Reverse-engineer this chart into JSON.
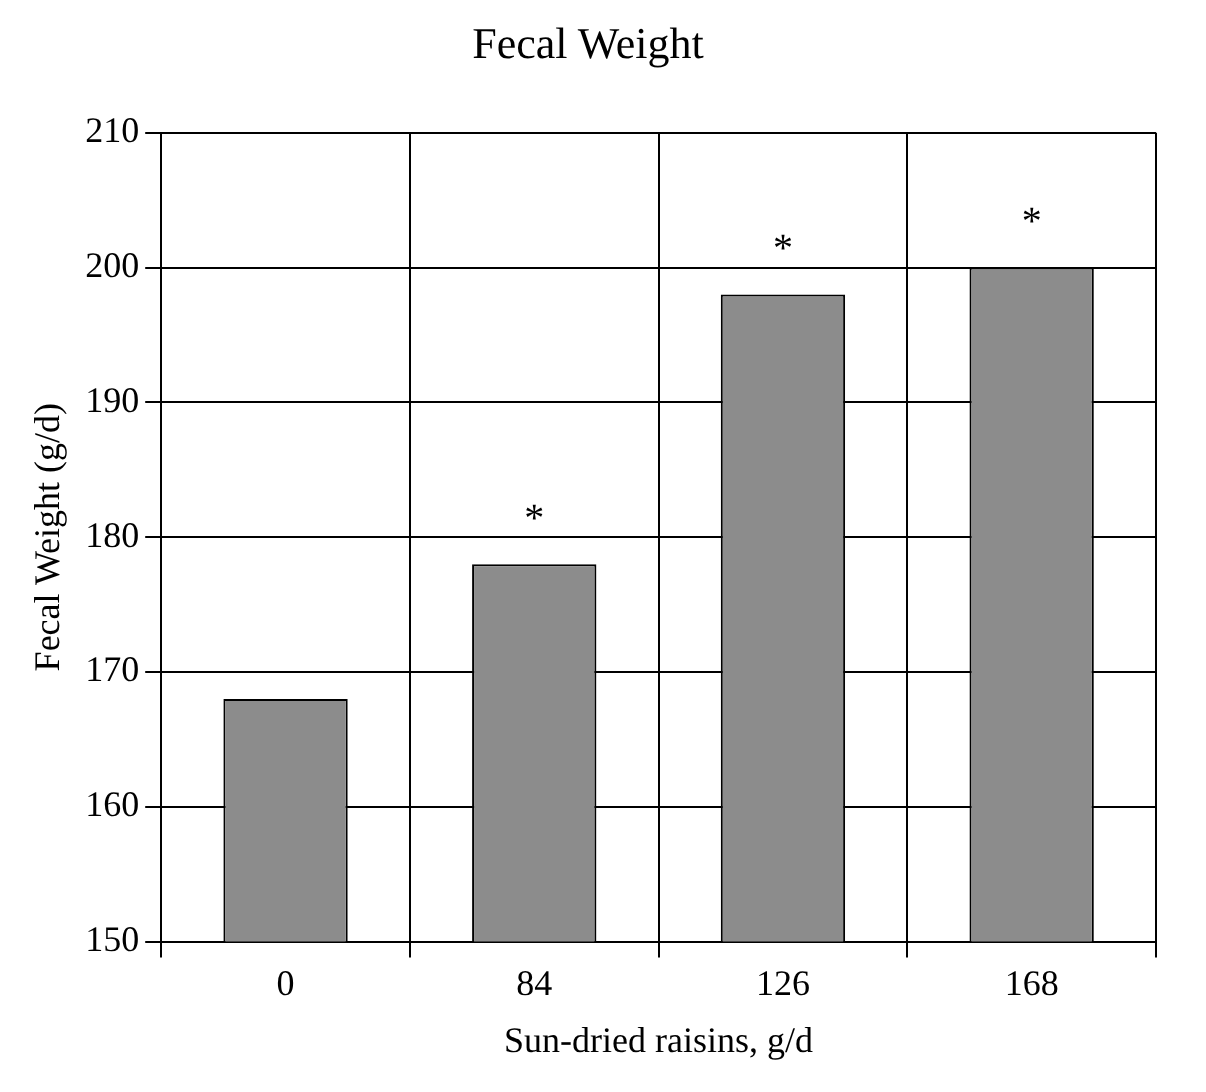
{
  "chart_data": {
    "type": "bar",
    "title": "Fecal Weight",
    "xlabel": "Sun-dried raisins, g/d",
    "ylabel": "Fecal Weight (g/d)",
    "categories": [
      "0",
      "84",
      "126",
      "168"
    ],
    "values": [
      168,
      178,
      198,
      200
    ],
    "color": "#8c8c8c",
    "ylim": [
      150,
      210
    ],
    "yticks": [
      150,
      160,
      170,
      180,
      190,
      200,
      210
    ],
    "grid": true,
    "annotations": [
      {
        "text": "*",
        "x": "84",
        "y": 178
      },
      {
        "text": "*",
        "x": "126",
        "y": 198
      },
      {
        "text": "*",
        "x": "168",
        "y": 200
      }
    ]
  }
}
